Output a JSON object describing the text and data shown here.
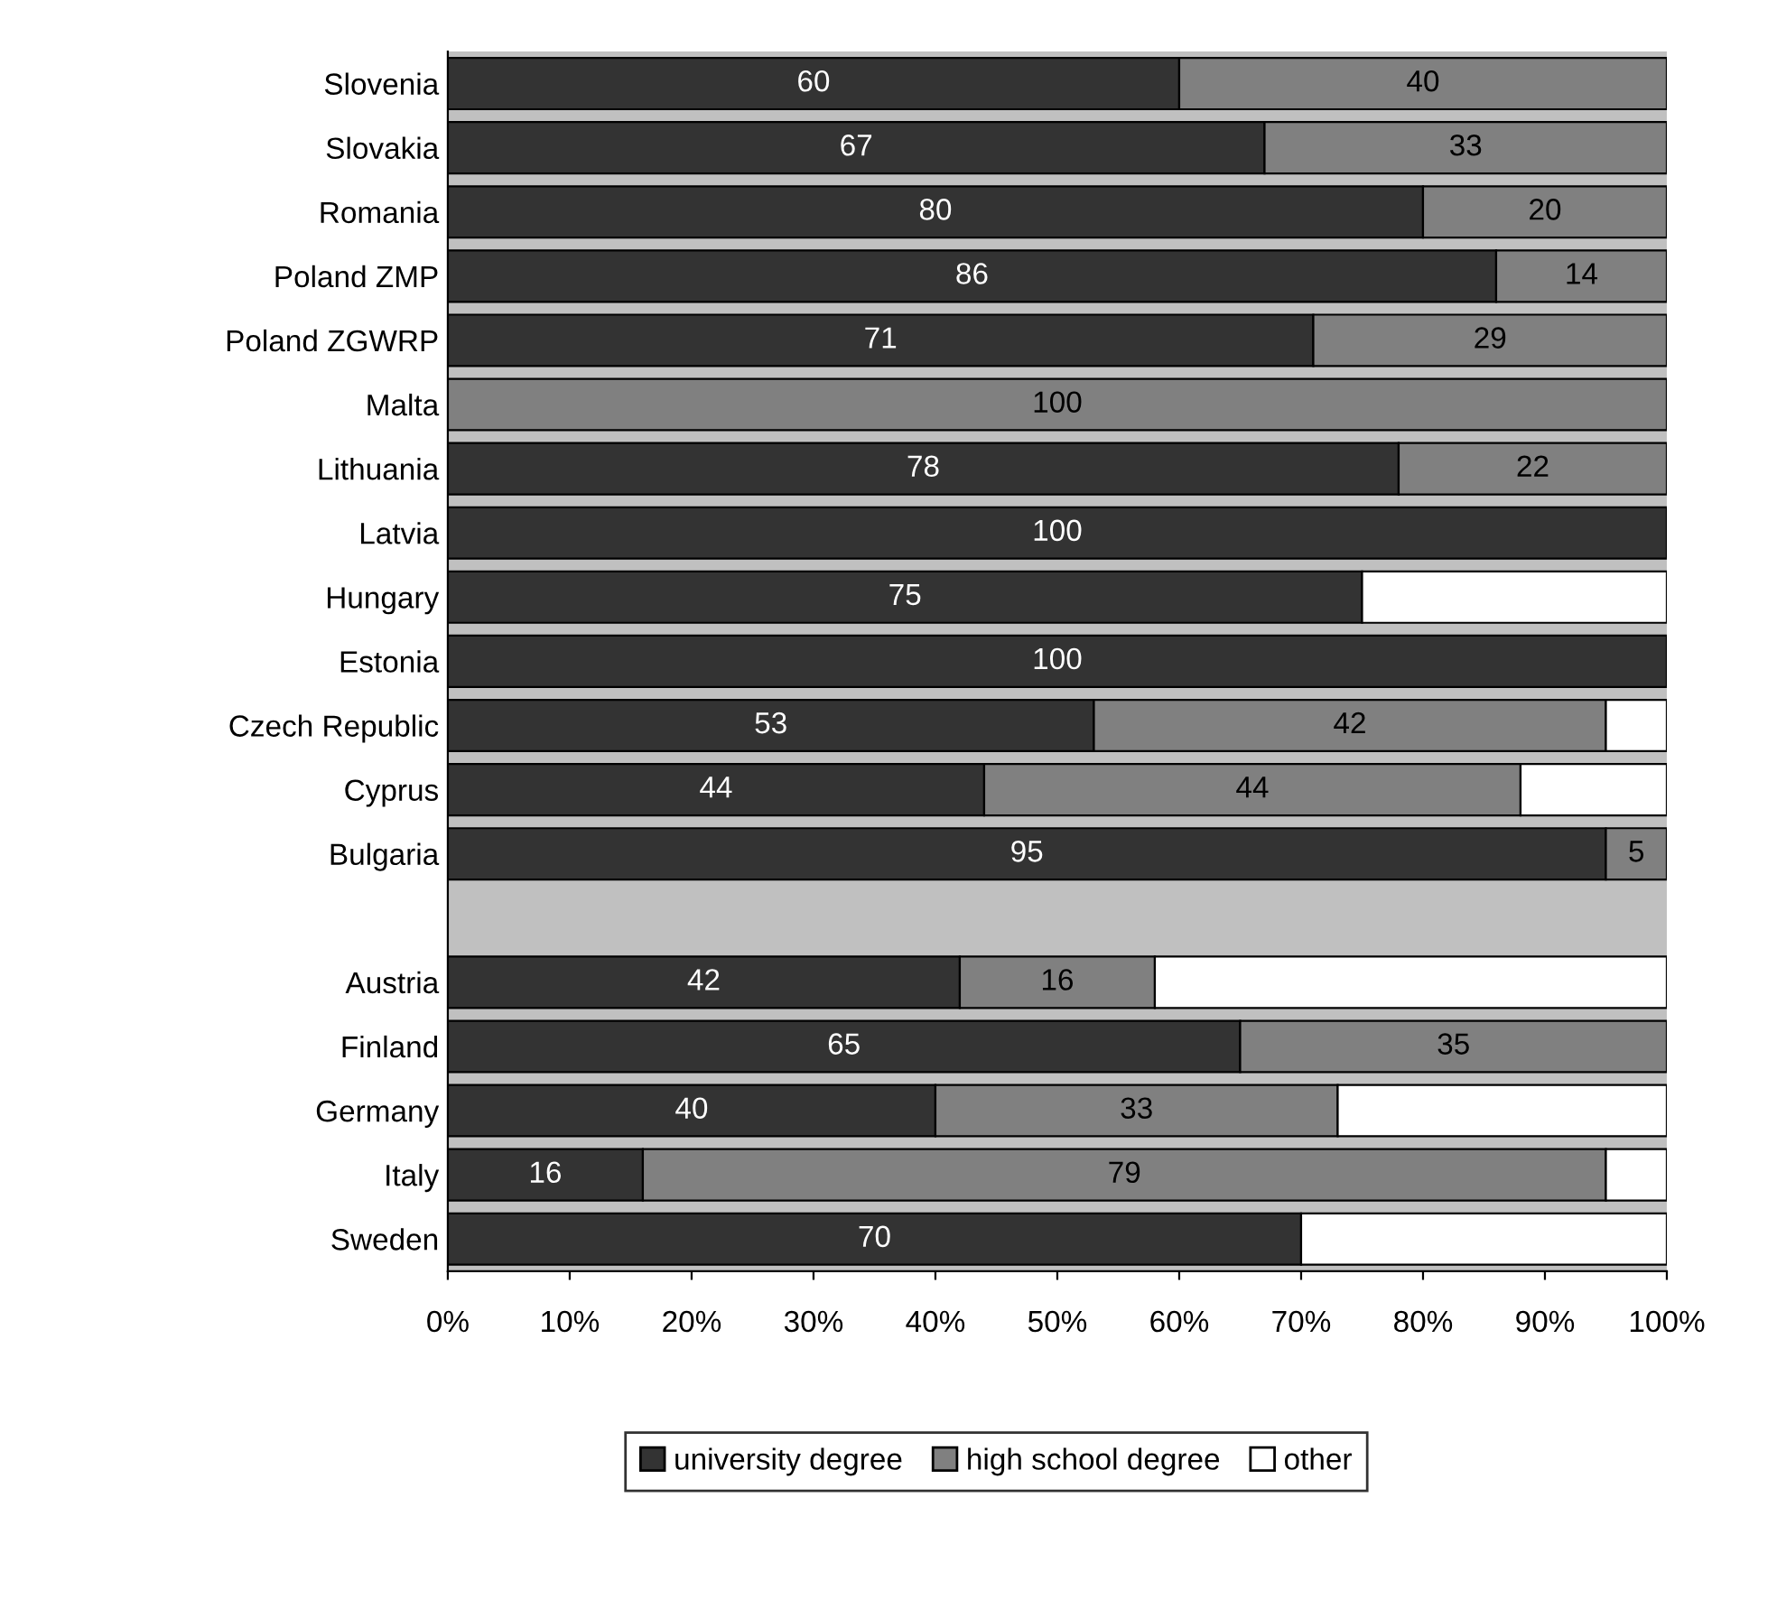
{
  "chart_data": {
    "type": "bar",
    "orientation": "horizontal",
    "stacked": true,
    "categories": [
      "Slovenia",
      "Slovakia",
      "Romania",
      "Poland ZMP",
      "Poland ZGWRP",
      "Malta",
      "Lithuania",
      "Latvia",
      "Hungary",
      "Estonia",
      "Czech Republic",
      "Cyprus",
      "Bulgaria",
      null,
      "Austria",
      "Finland",
      "Germany",
      "Italy",
      "Sweden"
    ],
    "series": [
      {
        "name": "university degree",
        "color": "#333333",
        "values": [
          60,
          67,
          80,
          86,
          71,
          null,
          78,
          100,
          75,
          100,
          53,
          44,
          95,
          null,
          42,
          65,
          40,
          16,
          70
        ],
        "value_labels": [
          "60",
          "67",
          "80",
          "86",
          "71",
          null,
          "78",
          "100",
          "75",
          "100",
          "53",
          "44",
          "95",
          null,
          "42",
          "65",
          "40",
          "16",
          "70"
        ]
      },
      {
        "name": "high school degree",
        "color": "#808080",
        "values": [
          40,
          33,
          20,
          14,
          29,
          100,
          22,
          null,
          null,
          null,
          42,
          44,
          5,
          null,
          16,
          35,
          33,
          79,
          null
        ],
        "value_labels": [
          "40",
          "33",
          "20",
          "14",
          "29",
          "100",
          "22",
          null,
          null,
          null,
          "42",
          "44",
          "5",
          null,
          "16",
          "35",
          "33",
          "79",
          null
        ]
      },
      {
        "name": "other",
        "color": "#ffffff",
        "values": [
          null,
          null,
          null,
          null,
          null,
          null,
          null,
          null,
          25,
          null,
          5,
          12,
          null,
          null,
          42,
          null,
          27,
          5,
          30
        ]
      }
    ],
    "xlim": [
      0,
      100
    ],
    "xticks": [
      {
        "value": 0,
        "label": "0%"
      },
      {
        "value": 10,
        "label": "10%"
      },
      {
        "value": 20,
        "label": "20%"
      },
      {
        "value": 30,
        "label": "30%"
      },
      {
        "value": 40,
        "label": "40%"
      },
      {
        "value": 50,
        "label": "50%"
      },
      {
        "value": 60,
        "label": "60%"
      },
      {
        "value": 70,
        "label": "70%"
      },
      {
        "value": 80,
        "label": "80%"
      },
      {
        "value": 90,
        "label": "90%"
      },
      {
        "value": 100,
        "label": "100%"
      }
    ],
    "legend": "bottom",
    "grid": false
  }
}
